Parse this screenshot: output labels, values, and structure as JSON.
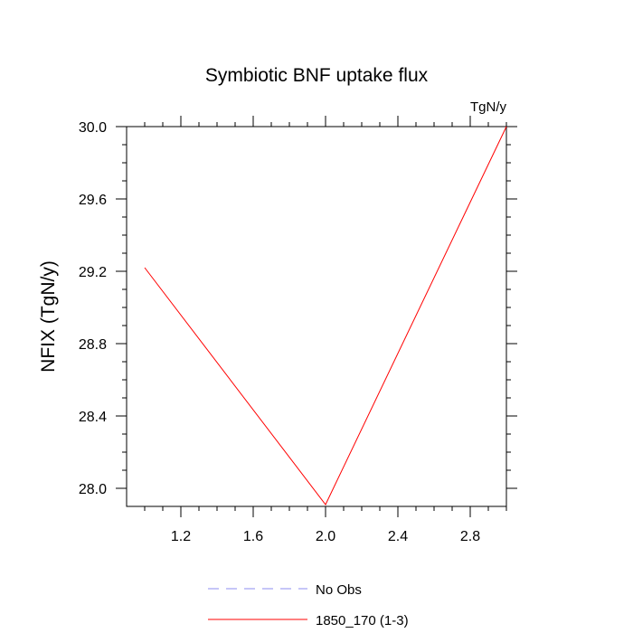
{
  "chart_data": {
    "type": "line",
    "title": "Symbiotic BNF uptake flux",
    "units_label": "TgN/y",
    "ylabel": "NFIX  (TgN/y)",
    "xlabel": "",
    "xlim": [
      0.9,
      3.0
    ],
    "ylim": [
      27.9,
      30.0
    ],
    "x_ticks": [
      1.2,
      1.6,
      2.0,
      2.4,
      2.8
    ],
    "x_tick_labels": [
      "1.2",
      "1.6",
      "2.0",
      "2.4",
      "2.8"
    ],
    "y_ticks": [
      28.0,
      28.4,
      28.8,
      29.2,
      29.6,
      30.0
    ],
    "y_tick_labels": [
      "28.0",
      "28.4",
      "28.8",
      "29.2",
      "29.6",
      "30.0"
    ],
    "grid": false,
    "legend_position": "bottom-center",
    "series": [
      {
        "name": "No Obs",
        "color": "#8c8cf0",
        "style": "dashed",
        "x": [],
        "y": []
      },
      {
        "name": "1850_170 (1-3)",
        "color": "#ff0000",
        "style": "solid",
        "x": [
          1.0,
          2.0,
          3.0
        ],
        "y": [
          29.22,
          27.91,
          30.0
        ]
      }
    ]
  }
}
